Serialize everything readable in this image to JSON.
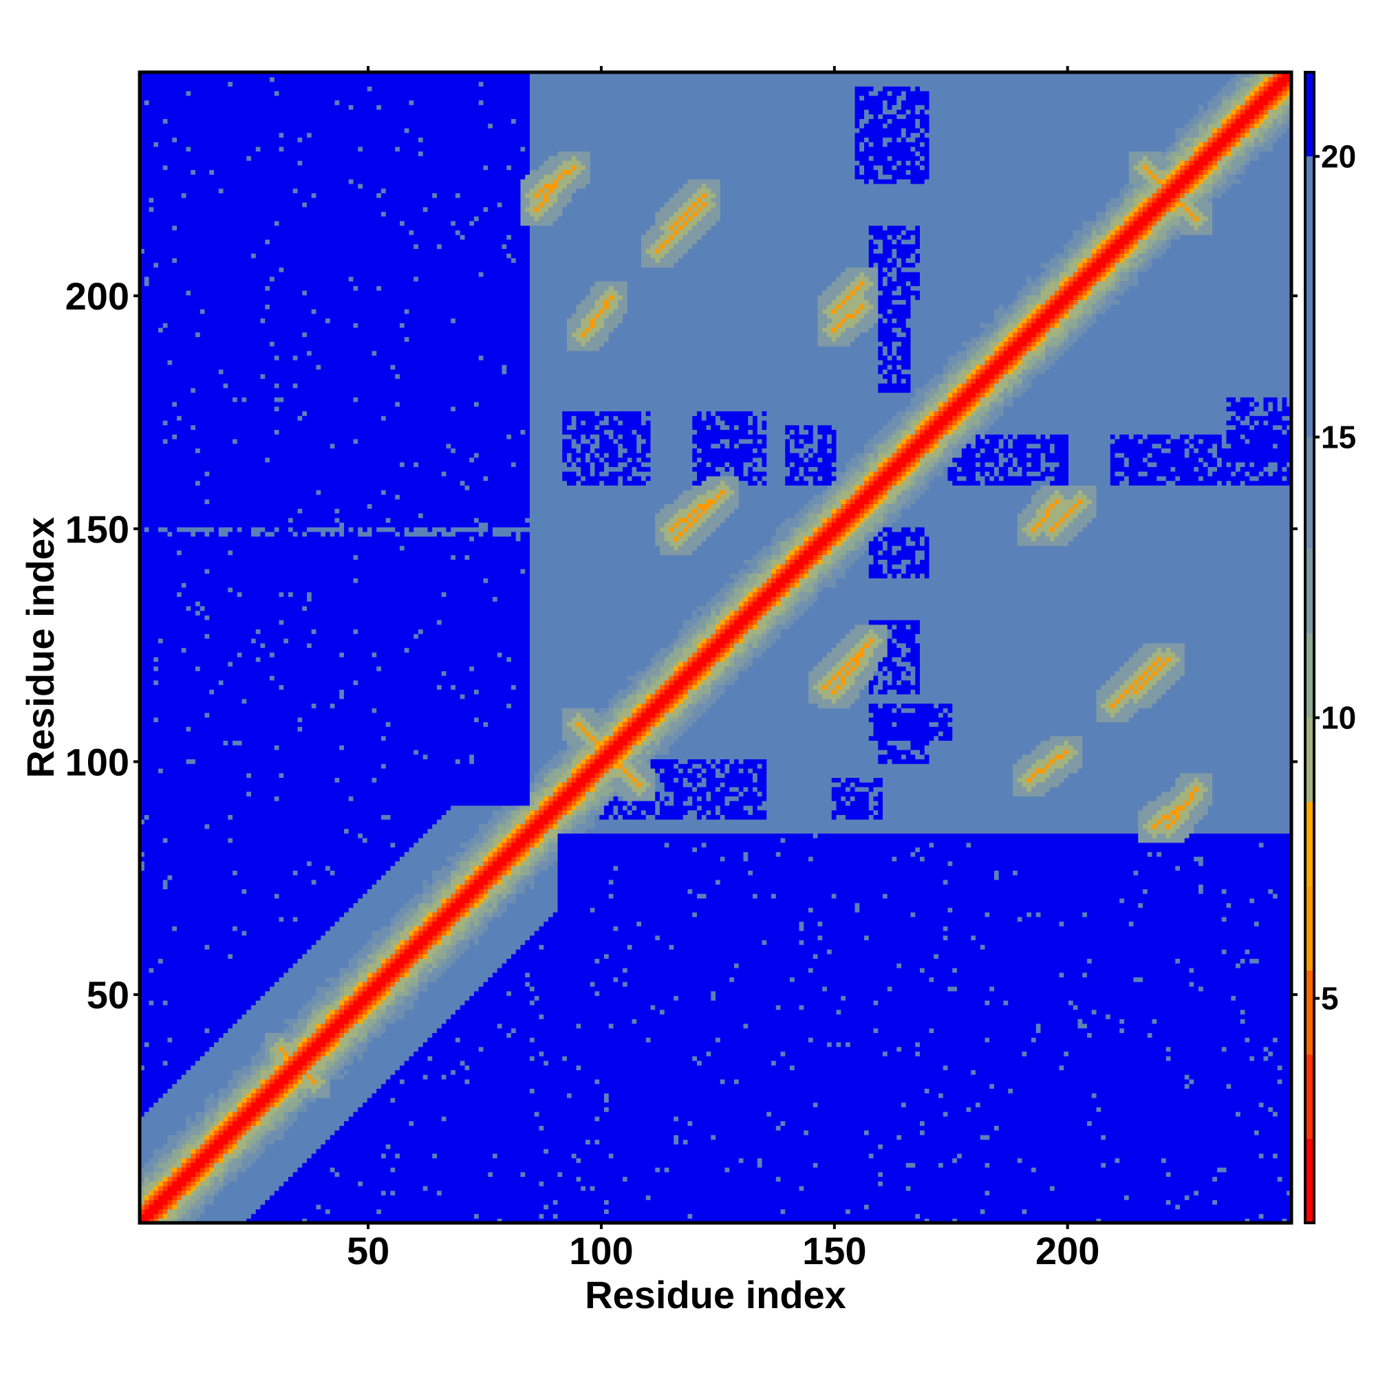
{
  "chart_data": {
    "type": "heatmap",
    "title": "",
    "xlabel": "Residue index",
    "ylabel": "Residue index",
    "n": 248,
    "xlim": [
      1,
      248
    ],
    "ylim": [
      1,
      248
    ],
    "x_ticks": [
      50,
      100,
      150,
      200
    ],
    "y_ticks": [
      50,
      100,
      150,
      200
    ],
    "x_tick_labels": [
      "50",
      "100",
      "150",
      "200"
    ],
    "y_tick_labels": [
      "50",
      "100",
      "150",
      "200"
    ],
    "top_ticks": [
      50,
      100,
      150,
      200
    ],
    "right_ticks": [
      50,
      100,
      150,
      200
    ],
    "colorbar": {
      "range": [
        1,
        21.5
      ],
      "ticks": [
        5,
        10,
        15,
        20
      ],
      "tick_labels": [
        "5",
        "10",
        "15",
        "20"
      ],
      "bins": [
        {
          "max": 2.5,
          "color": "#ff0000"
        },
        {
          "max": 4.0,
          "color": "#ff3300"
        },
        {
          "max": 5.5,
          "color": "#ff6600"
        },
        {
          "max": 7.0,
          "color": "#ff9900"
        },
        {
          "max": 8.5,
          "color": "#ffaa00"
        },
        {
          "max": 10.0,
          "color": "#a3b27f"
        },
        {
          "max": 11.5,
          "color": "#8ea894"
        },
        {
          "max": 13.0,
          "color": "#7f9aa5"
        },
        {
          "max": 15.0,
          "color": "#6e8fb0"
        },
        {
          "max": 20.0,
          "color": "#5b82b8"
        },
        {
          "max": 999,
          "color": "#0000f0"
        }
      ]
    },
    "description_of_values": "symmetric residue distance map; distance grows with |i-j|, red along diagonal",
    "matrix_generation": {
      "diagonal_width": 6,
      "near_region_blocks": [
        {
          "i": [
            1,
            90
          ],
          "j": [
            1,
            90
          ],
          "max_offset": 22
        },
        {
          "i": [
            85,
            248
          ],
          "j": [
            85,
            248
          ],
          "max_offset": 248
        }
      ],
      "contact_segments": [
        {
          "i": [
            95,
            108
          ],
          "j": [
            108,
            95
          ]
        },
        {
          "i": [
            116,
            126
          ],
          "j": [
            148,
            158
          ]
        },
        {
          "i": [
            115,
            123
          ],
          "j": [
            150,
            156
          ]
        },
        {
          "i": [
            150,
            156
          ],
          "j": [
            197,
            203
          ]
        },
        {
          "i": [
            86,
            94
          ],
          "j": [
            222,
            228
          ]
        },
        {
          "i": [
            112,
            122
          ],
          "j": [
            210,
            220
          ]
        },
        {
          "i": [
            96,
            102
          ],
          "j": [
            192,
            200
          ]
        },
        {
          "i": [
            217,
            228
          ],
          "j": [
            228,
            217
          ]
        },
        {
          "i": [
            193,
            198
          ],
          "j": [
            150,
            156
          ]
        },
        {
          "i": [
            215,
            222
          ],
          "j": [
            115,
            122
          ]
        },
        {
          "i": [
            219,
            224
          ],
          "j": [
            86,
            90
          ]
        },
        {
          "i": [
            192,
            197
          ],
          "j": [
            96,
            100
          ]
        },
        {
          "i": [
            31,
            38
          ],
          "j": [
            38,
            31
          ]
        }
      ],
      "far_blue_regions": [
        {
          "i": [
            1,
            84
          ],
          "j": [
            92,
            248
          ]
        },
        {
          "i": [
            160,
            248
          ],
          "j": [
            1,
            80
          ]
        },
        {
          "i": [
            92,
            248
          ],
          "j": [
            1,
            80
          ]
        }
      ]
    }
  }
}
